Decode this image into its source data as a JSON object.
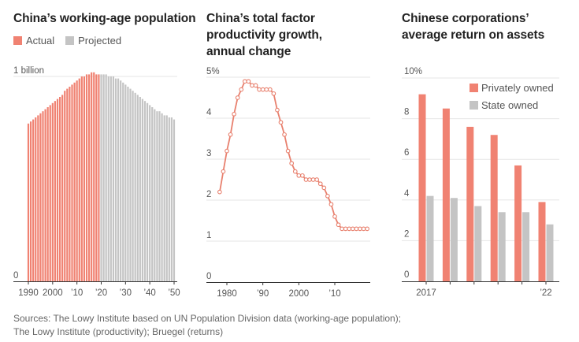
{
  "colors": {
    "actual": "#f08272",
    "projected": "#c4c4c4",
    "private": "#f08272",
    "state": "#c4c4c4",
    "line": "#e8806e",
    "grid": "#e6e6e6",
    "axis": "#333333"
  },
  "sources": {
    "line1": "Sources: The Lowy Institute based on UN Population Division data (working-age population);",
    "line2": "The Lowy Institute (productivity); Bruegel (returns)"
  },
  "chart_data": [
    {
      "type": "bar",
      "title": "China’s working-age population",
      "legend": [
        {
          "name": "Actual",
          "color_key": "actual"
        },
        {
          "name": "Projected",
          "color_key": "projected"
        }
      ],
      "legend_position": "top-left",
      "ylabel": "",
      "y_unit": "billion",
      "ylim": [
        0,
        1
      ],
      "yticks": [
        {
          "value": 0,
          "label": "0"
        },
        {
          "value": 1,
          "label": "1 billion"
        }
      ],
      "xticks": [
        {
          "value": 1990,
          "label": "1990"
        },
        {
          "value": 2000,
          "label": "2000"
        },
        {
          "value": 2010,
          "label": "’10"
        },
        {
          "value": 2020,
          "label": "’20"
        },
        {
          "value": 2030,
          "label": "’30"
        },
        {
          "value": 2040,
          "label": "’40"
        },
        {
          "value": 2050,
          "label": "’50"
        }
      ],
      "x_start": 1990,
      "actual_through": 2019,
      "values": [
        0.77,
        0.78,
        0.79,
        0.8,
        0.81,
        0.82,
        0.83,
        0.84,
        0.85,
        0.86,
        0.87,
        0.88,
        0.89,
        0.9,
        0.91,
        0.93,
        0.94,
        0.95,
        0.96,
        0.97,
        0.98,
        0.99,
        1.0,
        1.0,
        1.01,
        1.01,
        1.02,
        1.02,
        1.01,
        1.01,
        1.01,
        1.01,
        1.01,
        1.0,
        1.0,
        1.0,
        0.99,
        0.99,
        0.98,
        0.97,
        0.96,
        0.95,
        0.94,
        0.93,
        0.92,
        0.91,
        0.9,
        0.89,
        0.88,
        0.87,
        0.86,
        0.85,
        0.84,
        0.83,
        0.83,
        0.82,
        0.81,
        0.81,
        0.8,
        0.8,
        0.79
      ]
    },
    {
      "type": "line",
      "title": "China’s total factor productivity growth, annual change",
      "ylim": [
        0,
        5
      ],
      "yticks": [
        {
          "value": 0,
          "label": "0"
        },
        {
          "value": 1,
          "label": "1"
        },
        {
          "value": 2,
          "label": "2"
        },
        {
          "value": 3,
          "label": "3"
        },
        {
          "value": 4,
          "label": "4"
        },
        {
          "value": 5,
          "label": "5%"
        }
      ],
      "xticks": [
        {
          "value": 1980,
          "label": "1980"
        },
        {
          "value": 1990,
          "label": "’90"
        },
        {
          "value": 2000,
          "label": "2000"
        },
        {
          "value": 2010,
          "label": "’10"
        }
      ],
      "xlim": [
        1976,
        2021
      ],
      "x": [
        1978,
        1979,
        1980,
        1981,
        1982,
        1983,
        1984,
        1985,
        1986,
        1987,
        1988,
        1989,
        1990,
        1991,
        1992,
        1993,
        1994,
        1995,
        1996,
        1997,
        1998,
        1999,
        2000,
        2001,
        2002,
        2003,
        2004,
        2005,
        2006,
        2007,
        2008,
        2009,
        2010,
        2011,
        2012,
        2013,
        2014,
        2015,
        2016,
        2017,
        2018,
        2019
      ],
      "values": [
        2.2,
        2.7,
        3.2,
        3.6,
        4.1,
        4.5,
        4.7,
        4.9,
        4.9,
        4.8,
        4.8,
        4.7,
        4.7,
        4.7,
        4.7,
        4.6,
        4.2,
        3.9,
        3.6,
        3.2,
        2.9,
        2.7,
        2.6,
        2.6,
        2.5,
        2.5,
        2.5,
        2.5,
        2.4,
        2.3,
        2.1,
        1.9,
        1.6,
        1.4,
        1.3,
        1.3,
        1.3,
        1.3,
        1.3,
        1.3,
        1.3,
        1.3
      ]
    },
    {
      "type": "bar",
      "title": "Chinese corporations’ average return on assets",
      "ylim": [
        0,
        10
      ],
      "yticks": [
        {
          "value": 0,
          "label": "0"
        },
        {
          "value": 2,
          "label": "2"
        },
        {
          "value": 4,
          "label": "4"
        },
        {
          "value": 6,
          "label": "6"
        },
        {
          "value": 8,
          "label": "8"
        },
        {
          "value": 10,
          "label": "10%"
        }
      ],
      "categories": [
        "2017",
        "2018",
        "2019",
        "2020",
        "2021",
        "2022"
      ],
      "category_labels": [
        "2017",
        "",
        "",
        "",
        "",
        "’22"
      ],
      "legend_position": "top-right",
      "series": [
        {
          "name": "Privately owned",
          "color_key": "private",
          "values": [
            9.2,
            8.5,
            7.6,
            7.2,
            5.7,
            3.9
          ]
        },
        {
          "name": "State owned",
          "color_key": "state",
          "values": [
            4.2,
            4.1,
            3.7,
            3.4,
            3.4,
            2.8
          ]
        }
      ]
    }
  ]
}
